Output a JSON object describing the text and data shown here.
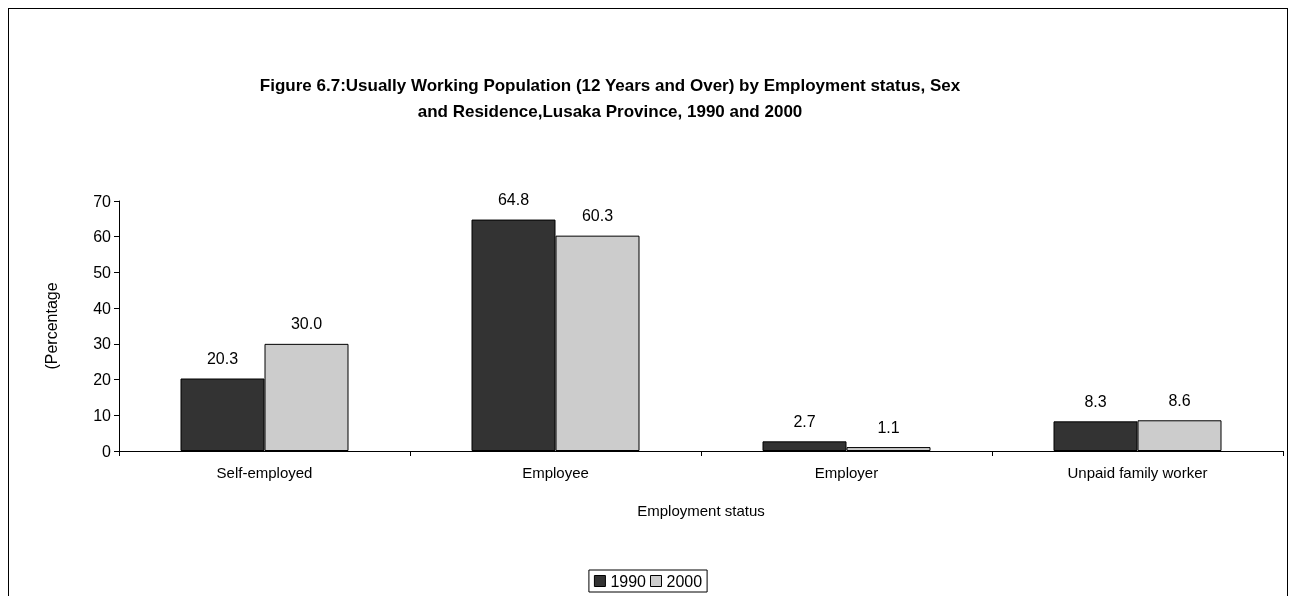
{
  "chart_data": {
    "type": "bar",
    "title": "Figure 6.7:Usually Working Population (12 Years and Over) by Employment status, Sex\nand Residence,Lusaka Province, 1990 and 2000",
    "xlabel": "Employment status",
    "ylabel": "(Percentage",
    "categories": [
      "Self-employed",
      "Employee",
      "Employer",
      "Unpaid family worker"
    ],
    "series": [
      {
        "name": "1990",
        "color": "#333333",
        "values": [
          20.3,
          64.8,
          2.7,
          8.3
        ],
        "value_labels": [
          "20.3",
          "64.8",
          "2.7",
          "8.3"
        ]
      },
      {
        "name": "2000",
        "color": "#cccccc",
        "values": [
          30.0,
          60.3,
          1.1,
          8.6
        ],
        "value_labels": [
          "30.0",
          "60.3",
          "1.1",
          "8.6"
        ]
      }
    ],
    "ylim": [
      0,
      70
    ],
    "yticks": [
      0,
      10,
      20,
      30,
      40,
      50,
      60,
      70
    ],
    "grid": false,
    "legend": "bottom"
  }
}
